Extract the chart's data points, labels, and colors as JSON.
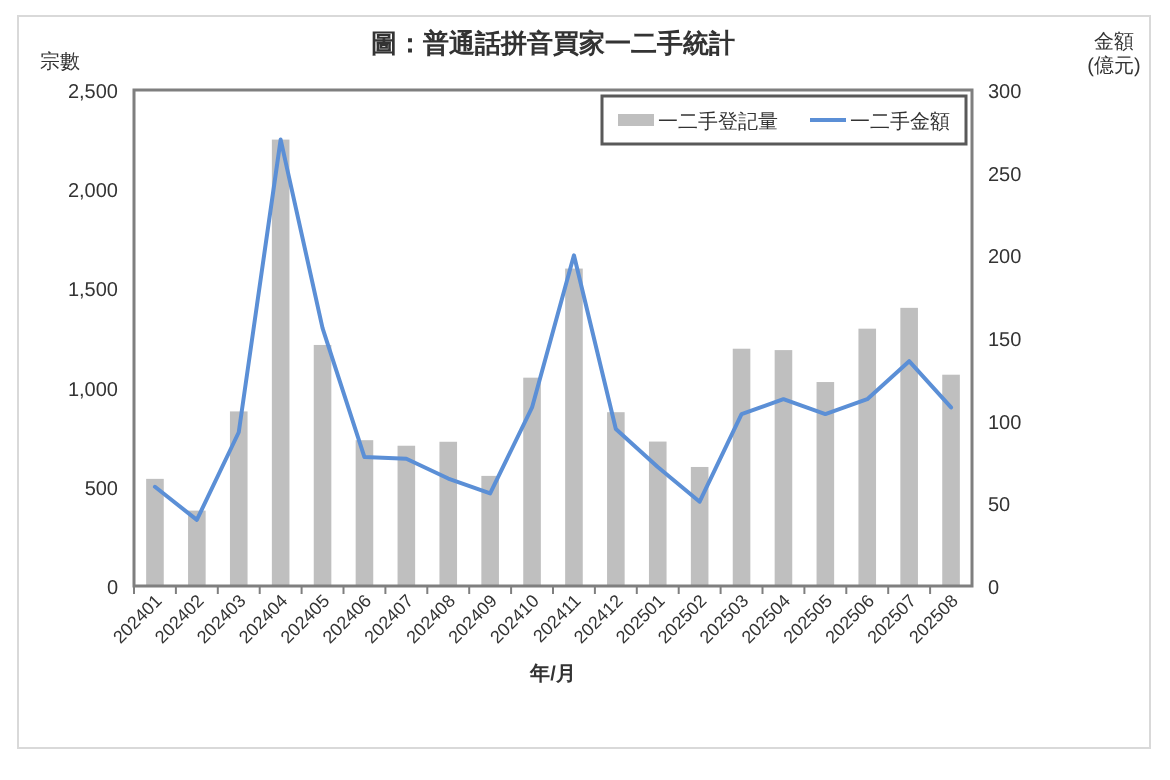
{
  "chart_data": {
    "type": "bar",
    "title": "圖：普通話拼音買家一二手統計",
    "xlabel": "年/月",
    "ylabel": "宗數",
    "y2label": "金額(億元)",
    "categories": [
      "202401",
      "202402",
      "202403",
      "202404",
      "202405",
      "202406",
      "202407",
      "202408",
      "202409",
      "202410",
      "202411",
      "202412",
      "202501",
      "202502",
      "202503",
      "202504",
      "202505",
      "202506",
      "202507",
      "202508"
    ],
    "series": [
      {
        "name": "一二手登記量",
        "color": "#bfbfbf",
        "values": [
          540,
          380,
          880,
          2250,
          1215,
          735,
          707,
          727,
          555,
          1050,
          1600,
          876,
          728,
          600,
          1196,
          1189,
          1028,
          1297,
          1402,
          1065
        ]
      },
      {
        "name": "一二手金額",
        "type": "line",
        "axis": "y2",
        "color": "#5b8fd6",
        "values": [
          60,
          40,
          93,
          270,
          156,
          78,
          77,
          65,
          56,
          108,
          200,
          95,
          72,
          51,
          104,
          113,
          104,
          113,
          136,
          108
        ]
      }
    ],
    "ylim": [
      0,
      2500
    ],
    "yticks": [
      {
        "value": 0,
        "label": "0"
      },
      {
        "value": 500,
        "label": "500"
      },
      {
        "value": 1000,
        "label": "1,000"
      },
      {
        "value": 1500,
        "label": "1,500"
      },
      {
        "value": 2000,
        "label": "2,000"
      },
      {
        "value": 2500,
        "label": "2,500"
      }
    ],
    "y2lim": [
      0,
      300
    ],
    "y2ticks": [
      0,
      50,
      100,
      150,
      200,
      250,
      300
    ],
    "legend": "top right",
    "grid": false
  }
}
